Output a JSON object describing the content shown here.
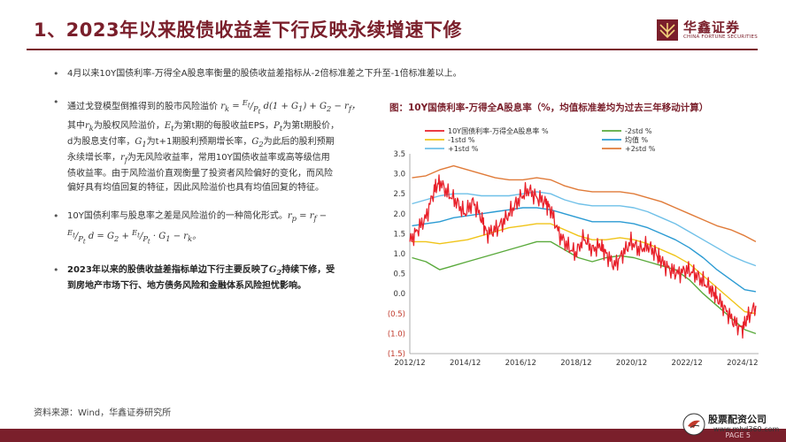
{
  "header": {
    "title": "1、2023年以来股债收益差下行反映永续增速下修",
    "logo_cn": "华鑫证券",
    "logo_en": "CHINA FORTUNE SECURITIES"
  },
  "bullets": {
    "b1": "4月以来10Y国债利率-万得全A股息率衡量的股债收益差指标从-2倍标准差之下升至-1倍标准差以上。",
    "b2_l1": "通过戈登模型倒推得到的股市风险溢价",
    "b2_l2": "其中",
    "b2_l2b": "为股权风险溢价，",
    "b2_l2c": "为第t期的每股收益EPS，",
    "b2_l2d": "为第t期股价，",
    "b2_l3a": "d为股息支付率，",
    "b2_l3b": "为t+1期股利预期增长率，",
    "b2_l3c": "为此后的股利预期",
    "b2_l4a": "永续增长率，",
    "b2_l4b": "为无风险收益率，常用10Y国债收益率或高等级信用",
    "b2_l5": "债收益率。由于风险溢价直观衡量了投资者风险偏好的变化，而风险",
    "b2_l6": "偏好具有均值回复的特征，因此风险溢价也具有均值回复的特征。",
    "b3_l1": "10Y国债利率与股息率之差是风险溢价的一种简化形式。",
    "b4_l1a": "2023年以来的股债收益差指标单边下行主要反映了",
    "b4_l1b": "持续下修，受",
    "b4_l2": "到房地产市场下行、地方债务风险和金融体系风险担忧影响。"
  },
  "chart_title": "图：10Y国债利率-万得全A股息率（%，均值标准差均为过去三年移动计算）",
  "source": "资料来源：Wind，华鑫证券研究所",
  "page_label": "PAGE 5",
  "watermark": {
    "text": "股票配资公司",
    "url": "www.mhd360.com"
  },
  "chart_data": {
    "type": "line",
    "ylim": [
      -1.5,
      3.5
    ],
    "y_ticks": [
      3.5,
      3.0,
      2.5,
      2.0,
      1.5,
      1.0,
      0.5,
      0.0,
      -0.5,
      -1.0,
      -1.5
    ],
    "y_tick_labels": [
      "3.5",
      "3.0",
      "2.5",
      "2.0",
      "1.5",
      "1.0",
      "0.5",
      "0.0",
      "(0.5)",
      "(1.0)",
      "(1.5)"
    ],
    "x_range": [
      2012.92,
      2025.5
    ],
    "x_ticks": [
      2012.92,
      2014.92,
      2016.92,
      2018.92,
      2020.92,
      2022.92,
      2024.92
    ],
    "x_tick_labels": [
      "2012/12",
      "2014/12",
      "2016/12",
      "2018/12",
      "2020/12",
      "2022/12",
      "2024/12"
    ],
    "legend": [
      {
        "name": "10Y国债利率-万得全A股息率 %",
        "color": "#e8202a"
      },
      {
        "name": "-2std %",
        "color": "#5aaa3c"
      },
      {
        "name": "-1std %",
        "color": "#f0c419"
      },
      {
        "name": "均值 %",
        "color": "#2b9bd3"
      },
      {
        "name": "+1std %",
        "color": "#6fc0e8"
      },
      {
        "name": "+2std %",
        "color": "#e07b39"
      }
    ],
    "series": [
      {
        "name": "10Y国债利率-万得全A股息率 %",
        "color": "#e8202a",
        "x": [
          2012.92,
          2013.2,
          2013.5,
          2013.8,
          2014.0,
          2014.3,
          2014.6,
          2014.9,
          2015.2,
          2015.5,
          2015.7,
          2016.0,
          2016.3,
          2016.6,
          2016.9,
          2017.2,
          2017.5,
          2017.8,
          2018.0,
          2018.3,
          2018.6,
          2018.9,
          2019.2,
          2019.5,
          2019.8,
          2020.0,
          2020.3,
          2020.6,
          2020.9,
          2021.2,
          2021.5,
          2021.8,
          2022.0,
          2022.3,
          2022.6,
          2022.9,
          2023.2,
          2023.5,
          2023.8,
          2024.0,
          2024.3,
          2024.6,
          2024.9,
          2025.1,
          2025.4
        ],
        "y": [
          1.3,
          1.6,
          1.9,
          2.6,
          2.8,
          2.5,
          2.3,
          2.0,
          2.3,
          1.9,
          1.5,
          1.6,
          1.8,
          2.1,
          2.4,
          2.6,
          2.4,
          2.3,
          2.1,
          1.5,
          1.2,
          1.0,
          1.4,
          1.1,
          1.2,
          1.0,
          0.7,
          1.0,
          1.3,
          1.1,
          1.2,
          1.0,
          0.8,
          0.6,
          0.5,
          0.6,
          0.5,
          0.3,
          0.1,
          -0.1,
          -0.4,
          -0.7,
          -0.9,
          -0.6,
          -0.3
        ]
      },
      {
        "name": "-2std %",
        "color": "#5aaa3c",
        "x": [
          2013.0,
          2013.5,
          2014.0,
          2014.5,
          2015.0,
          2015.5,
          2016.0,
          2016.5,
          2017.0,
          2017.5,
          2018.0,
          2018.5,
          2019.0,
          2019.5,
          2020.0,
          2020.5,
          2021.0,
          2021.5,
          2022.0,
          2022.5,
          2023.0,
          2023.5,
          2024.0,
          2024.5,
          2025.0,
          2025.4
        ],
        "y": [
          0.9,
          0.8,
          0.6,
          0.7,
          0.8,
          0.9,
          1.0,
          1.1,
          1.2,
          1.3,
          1.3,
          1.1,
          0.9,
          0.8,
          0.9,
          0.95,
          0.9,
          0.8,
          0.7,
          0.6,
          0.35,
          0.0,
          -0.3,
          -0.6,
          -0.9,
          -1.0
        ]
      },
      {
        "name": "-1std %",
        "color": "#f0c419",
        "x": [
          2013.0,
          2013.5,
          2014.0,
          2014.5,
          2015.0,
          2015.5,
          2016.0,
          2016.5,
          2017.0,
          2017.5,
          2018.0,
          2018.5,
          2019.0,
          2019.5,
          2020.0,
          2020.5,
          2021.0,
          2021.5,
          2022.0,
          2022.5,
          2023.0,
          2023.5,
          2024.0,
          2024.5,
          2025.0,
          2025.4
        ],
        "y": [
          1.3,
          1.3,
          1.25,
          1.3,
          1.35,
          1.45,
          1.55,
          1.65,
          1.7,
          1.75,
          1.75,
          1.6,
          1.45,
          1.35,
          1.35,
          1.4,
          1.35,
          1.25,
          1.1,
          0.95,
          0.75,
          0.45,
          0.15,
          -0.15,
          -0.45,
          -0.5
        ]
      },
      {
        "name": "均值 %",
        "color": "#2b9bd3",
        "x": [
          2013.0,
          2013.5,
          2014.0,
          2014.5,
          2015.0,
          2015.5,
          2016.0,
          2016.5,
          2017.0,
          2017.5,
          2018.0,
          2018.5,
          2019.0,
          2019.5,
          2020.0,
          2020.5,
          2021.0,
          2021.5,
          2022.0,
          2022.5,
          2023.0,
          2023.5,
          2024.0,
          2024.5,
          2025.0,
          2025.4
        ],
        "y": [
          1.7,
          1.75,
          1.8,
          1.9,
          1.95,
          2.0,
          2.05,
          2.1,
          2.15,
          2.15,
          2.1,
          2.0,
          1.9,
          1.8,
          1.8,
          1.8,
          1.75,
          1.65,
          1.5,
          1.35,
          1.15,
          0.9,
          0.6,
          0.35,
          0.1,
          0.05
        ]
      },
      {
        "name": "+1std %",
        "color": "#6fc0e8",
        "x": [
          2013.0,
          2013.5,
          2014.0,
          2014.5,
          2015.0,
          2015.5,
          2016.0,
          2016.5,
          2017.0,
          2017.5,
          2018.0,
          2018.5,
          2019.0,
          2019.5,
          2020.0,
          2020.5,
          2021.0,
          2021.5,
          2022.0,
          2022.5,
          2023.0,
          2023.5,
          2024.0,
          2024.5,
          2025.0,
          2025.4
        ],
        "y": [
          2.25,
          2.35,
          2.45,
          2.5,
          2.5,
          2.45,
          2.45,
          2.45,
          2.5,
          2.55,
          2.5,
          2.35,
          2.25,
          2.2,
          2.2,
          2.2,
          2.15,
          2.05,
          1.9,
          1.75,
          1.55,
          1.35,
          1.15,
          0.95,
          0.8,
          0.7
        ]
      },
      {
        "name": "+2std %",
        "color": "#e07b39",
        "x": [
          2013.0,
          2013.5,
          2014.0,
          2014.5,
          2015.0,
          2015.5,
          2016.0,
          2016.5,
          2017.0,
          2017.5,
          2018.0,
          2018.5,
          2019.0,
          2019.5,
          2020.0,
          2020.5,
          2021.0,
          2021.5,
          2022.0,
          2022.5,
          2023.0,
          2023.5,
          2024.0,
          2024.5,
          2025.0,
          2025.4
        ],
        "y": [
          2.9,
          2.95,
          3.1,
          3.2,
          3.1,
          3.0,
          2.9,
          2.85,
          2.85,
          2.9,
          2.85,
          2.7,
          2.6,
          2.55,
          2.55,
          2.55,
          2.5,
          2.4,
          2.3,
          2.15,
          2.0,
          1.85,
          1.7,
          1.6,
          1.45,
          1.3
        ]
      }
    ]
  }
}
